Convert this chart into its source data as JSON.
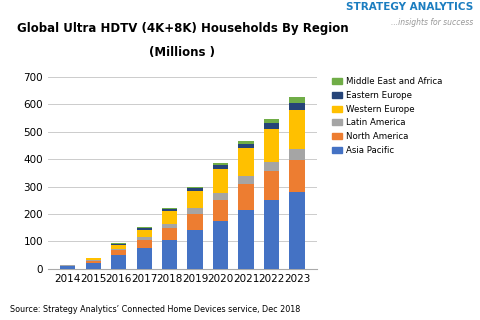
{
  "title": "Global Ultra HDTV (4K+8K) Households By Region\n(Millions )",
  "source_text": "Source: Strategy Analytics’ Connected Home Devices service, Dec 2018",
  "years": [
    "2014",
    "2015",
    "2016",
    "2017",
    "2018",
    "2019",
    "2020",
    "2021",
    "2022",
    "2023"
  ],
  "regions": [
    "Asia Pacific",
    "North America",
    "Latin America",
    "Western Europe",
    "Eastern Europe",
    "Middle East and Africa"
  ],
  "colors": [
    "#4472C4",
    "#ED7D31",
    "#A5A5A5",
    "#FFC000",
    "#264478",
    "#70AD47"
  ],
  "data": {
    "Asia Pacific": [
      10,
      22,
      50,
      75,
      105,
      140,
      175,
      215,
      250,
      280
    ],
    "North America": [
      2,
      8,
      18,
      30,
      45,
      60,
      75,
      95,
      105,
      115
    ],
    "Latin America": [
      1,
      3,
      6,
      10,
      15,
      20,
      25,
      30,
      35,
      40
    ],
    "Western Europe": [
      1,
      5,
      12,
      25,
      45,
      65,
      90,
      100,
      120,
      145
    ],
    "Eastern Europe": [
      0,
      2,
      5,
      8,
      8,
      10,
      12,
      15,
      20,
      25
    ],
    "Middle East and Africa": [
      0,
      1,
      2,
      3,
      4,
      5,
      7,
      10,
      15,
      20
    ]
  },
  "ylim": [
    0,
    700
  ],
  "yticks": [
    0,
    100,
    200,
    300,
    400,
    500,
    600,
    700
  ],
  "logo_text_strategy": "STRATEGY ANALYTICS",
  "logo_text_sub": "...insights for success",
  "background_color": "#ffffff",
  "grid_color": "#cccccc"
}
